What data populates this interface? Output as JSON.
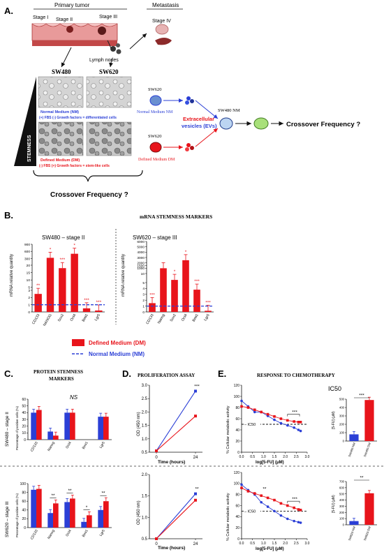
{
  "panelA": {
    "label": "A.",
    "primary_tumor": "Primary tumor",
    "metastasis": "Metastasis",
    "stage1": "Stage I",
    "stage2": "Stage II",
    "stage3": "Stage III",
    "stage4": "Stage IV",
    "lymph_nodes": "Lymph nodes",
    "sw480": "SW480",
    "sw620": "SW620",
    "nm_line1": "Normal Medium (NM)",
    "nm_line2": "(+) FBS (-) Growth factors = differentiated cells",
    "stemness": "STEMNESS",
    "dm_line1": "Defined Medium (DM)",
    "dm_line2": "(-) FBS (+) Growth factors = stem-like cells",
    "sw620_top": "SW620",
    "nm_arrow": "Normal Medium NM",
    "sw620_bottom": "SW620",
    "dm_arrow": "Defined Medium DM",
    "ev_line1": "Extracellular",
    "ev_line2": "vesicles (EVs)",
    "sw480_nm": "SW480 NM",
    "crossover_right": "Crossover Frequency ?",
    "crossover_bottom": "Crossover Frequency ?"
  },
  "panelB": {
    "label": "B.",
    "title": "mRNA STEMNESS MARKERS",
    "left_title": "SW480 – stage II",
    "right_title": "SW620 – stage III",
    "ylabel_left": "mRNA relative quantity",
    "ylabel_right": "mRNA relative quantity",
    "left_ticks": [
      "0",
      "1",
      "2",
      "3",
      "5",
      "10",
      "15",
      "20",
      "300",
      "600",
      "900"
    ],
    "right_ticks": [
      "0",
      "1",
      "2",
      "3",
      "4",
      "5",
      "10",
      "1000",
      "1500",
      "2000",
      "3000",
      "4000",
      "5000",
      "6000"
    ],
    "legend_dm": "Defined Medium (DM)",
    "legend_nm": "Normal Medium (NM)"
  },
  "panelC": {
    "label": "C.",
    "title_line1": "PROTEIN STEMNESS",
    "title_line2": "MARKERS",
    "row1_side": "SW480 – stage II",
    "row2_side": "SW620 – stage III",
    "ylabel": "Percentage of positive cells (%)",
    "ns": "NS",
    "ticks_top": [
      "0",
      "10",
      "20",
      "30",
      "40",
      "50",
      "60"
    ],
    "ticks_bottom": [
      "0",
      "20",
      "40",
      "60",
      "80",
      "100"
    ]
  },
  "panelD": {
    "label": "D.",
    "title": "PROLIFERATION ASSAY",
    "ylabel": "OD (450 nm)",
    "xlabel": "Time (hours)",
    "ticks_top": [
      "0.5",
      "1.0",
      "1.5",
      "2.0",
      "2.5",
      "3.0"
    ],
    "ticks_bottom": [
      "0.5",
      "1.0",
      "1.5",
      "2.0"
    ],
    "xticks": [
      "0",
      "24"
    ]
  },
  "panelE": {
    "label": "E.",
    "title": "RESPONSE TO CHEMOTHERAPY",
    "ic50_title": "IC50",
    "ylabel": "% Cellular metabolic activity",
    "xlabel": "log[5-FU] (μM)",
    "ic50_mark": "IC50",
    "bar_ylabel": "[5-FU] (μM)",
    "bar_ticks_top": [
      "0",
      "100",
      "200",
      "300",
      "400",
      "500"
    ],
    "bar_ticks_bottom": [
      "0",
      "100",
      "200",
      "300",
      "400",
      "500",
      "600",
      "700"
    ],
    "bar_cats_top": [
      "SW480 NM",
      "SW480 DM"
    ],
    "bar_cats_bottom": [
      "SW620 NM",
      "SW620 DM"
    ],
    "yticks": [
      "0",
      "20",
      "40",
      "60",
      "80",
      "100",
      "120"
    ],
    "xticks": [
      "0.0",
      "0.5",
      "1.0",
      "1.5",
      "2.0",
      "2.5",
      "3.0"
    ]
  },
  "colors": {
    "dm": "#e8141b",
    "nm": "#2b3fd6",
    "dark": "#111111"
  },
  "chart_data": [
    {
      "type": "bar",
      "title": "SW480 – stage II",
      "ylabel": "mRNA relative quantity",
      "categories": [
        "CD133",
        "NANOG",
        "Sox2",
        "Oct4",
        "Bmi1",
        "Lgr5"
      ],
      "series": [
        {
          "name": "Defined Medium (DM)",
          "values": [
            2.5,
            330,
            18,
            500,
            0.5,
            0.2
          ]
        }
      ],
      "reference_line": 1,
      "significance": [
        "**",
        "*",
        "***",
        "*",
        "***",
        "***"
      ]
    },
    {
      "type": "bar",
      "title": "SW620 – stage III",
      "ylabel": "mRNA relative quantity",
      "categories": [
        "CD133",
        "Nanog",
        "Sox2",
        "Oct4",
        "Bmi1",
        "Lgr5"
      ],
      "series": [
        {
          "name": "Defined Medium (DM)",
          "values": [
            1.5,
            1000,
            6.5,
            2500,
            3.8,
            0.2
          ]
        }
      ],
      "reference_line": 1,
      "significance": [
        "***",
        "",
        "*",
        "*",
        "***",
        "***"
      ]
    },
    {
      "type": "bar",
      "title": "SW480 – stage II",
      "ylabel": "Percentage of positive cells (%)",
      "categories": [
        "CD133",
        "Nanog",
        "Oct4",
        "Bmi1",
        "Lgr5"
      ],
      "series": [
        {
          "name": "Normal Medium (NM)",
          "values": [
            40,
            12,
            40,
            0,
            34
          ]
        },
        {
          "name": "Defined Medium (DM)",
          "values": [
            44,
            6,
            40,
            0,
            34
          ]
        }
      ],
      "ylim": [
        0,
        60
      ]
    },
    {
      "type": "bar",
      "title": "SW620 – stage III",
      "ylabel": "Percentage of positive cells (%)",
      "categories": [
        "CD133",
        "Nanog",
        "Oct4",
        "Bmi1",
        "Lgr5"
      ],
      "series": [
        {
          "name": "Normal Medium (NM)",
          "values": [
            86,
            33,
            58,
            13,
            40
          ]
        },
        {
          "name": "Defined Medium (DM)",
          "values": [
            88,
            55,
            66,
            28,
            60
          ]
        }
      ],
      "ylim": [
        0,
        100
      ],
      "significance": [
        "",
        "**",
        "**",
        "*",
        "**"
      ]
    },
    {
      "type": "line",
      "ylabel": "OD (450 nm)",
      "xlabel": "Time (hours)",
      "x": [
        0,
        24
      ],
      "series": [
        {
          "name": "Normal Medium (NM)",
          "values": [
            0.55,
            2.78
          ]
        },
        {
          "name": "Defined Medium (DM)",
          "values": [
            0.55,
            1.85
          ]
        }
      ],
      "ylim": [
        0.5,
        3.0
      ],
      "significance": "***"
    },
    {
      "type": "line",
      "ylabel": "OD (450 nm)",
      "xlabel": "Time (hours)",
      "x": [
        0,
        24
      ],
      "series": [
        {
          "name": "Normal Medium (NM)",
          "values": [
            0.5,
            1.55
          ]
        },
        {
          "name": "Defined Medium (DM)",
          "values": [
            0.5,
            1.4
          ]
        }
      ],
      "ylim": [
        0.5,
        2.0
      ],
      "significance": "**"
    },
    {
      "type": "scatter",
      "ylabel": "% Cellular metabolic activity",
      "xlabel": "log[5-FU] (μM)",
      "series": [
        {
          "name": "Normal Medium (NM)",
          "x": [
            0.0,
            0.3,
            0.6,
            0.9,
            1.2,
            1.5,
            1.8,
            2.1,
            2.4,
            2.6,
            2.7
          ],
          "y": [
            92,
            82,
            72,
            72,
            65,
            58,
            52,
            48,
            44,
            40,
            38
          ]
        },
        {
          "name": "Defined Medium (DM)",
          "x": [
            0.0,
            0.3,
            0.6,
            0.9,
            1.2,
            1.5,
            1.8,
            2.1,
            2.4,
            2.6,
            2.7
          ],
          "y": [
            82,
            80,
            76,
            72,
            68,
            64,
            60,
            57,
            55,
            54,
            54
          ]
        }
      ],
      "reference_line": 50,
      "xlim": [
        0,
        3
      ],
      "ylim": [
        0,
        120
      ]
    },
    {
      "type": "scatter",
      "ylabel": "% Cellular metabolic activity",
      "xlabel": "log[5-FU] (μM)",
      "series": [
        {
          "name": "Normal Medium (NM)",
          "x": [
            0.0,
            0.3,
            0.6,
            0.9,
            1.2,
            1.5,
            1.8,
            2.1,
            2.4,
            2.6,
            2.7
          ],
          "y": [
            98,
            88,
            80,
            66,
            58,
            50,
            42,
            36,
            32,
            30,
            29
          ]
        },
        {
          "name": "Defined Medium (DM)",
          "x": [
            0.0,
            0.3,
            0.6,
            0.9,
            1.2,
            1.5,
            1.8,
            2.1,
            2.4,
            2.6,
            2.7
          ],
          "y": [
            92,
            86,
            82,
            78,
            74,
            70,
            64,
            60,
            56,
            53,
            52
          ]
        }
      ],
      "reference_line": 50,
      "xlim": [
        0,
        3
      ],
      "ylim": [
        0,
        120
      ]
    },
    {
      "type": "bar",
      "title": "IC50",
      "ylabel": "[5-FU] (μM)",
      "categories": [
        "SW480 NM",
        "SW480 DM"
      ],
      "values": [
        80,
        490
      ],
      "ylim": [
        0,
        500
      ],
      "significance": "***"
    },
    {
      "type": "bar",
      "ylabel": "[5-FU] (μM)",
      "categories": [
        "SW620 NM",
        "SW620 DM"
      ],
      "values": [
        60,
        510
      ],
      "ylim": [
        0,
        700
      ],
      "significance": "**"
    }
  ]
}
